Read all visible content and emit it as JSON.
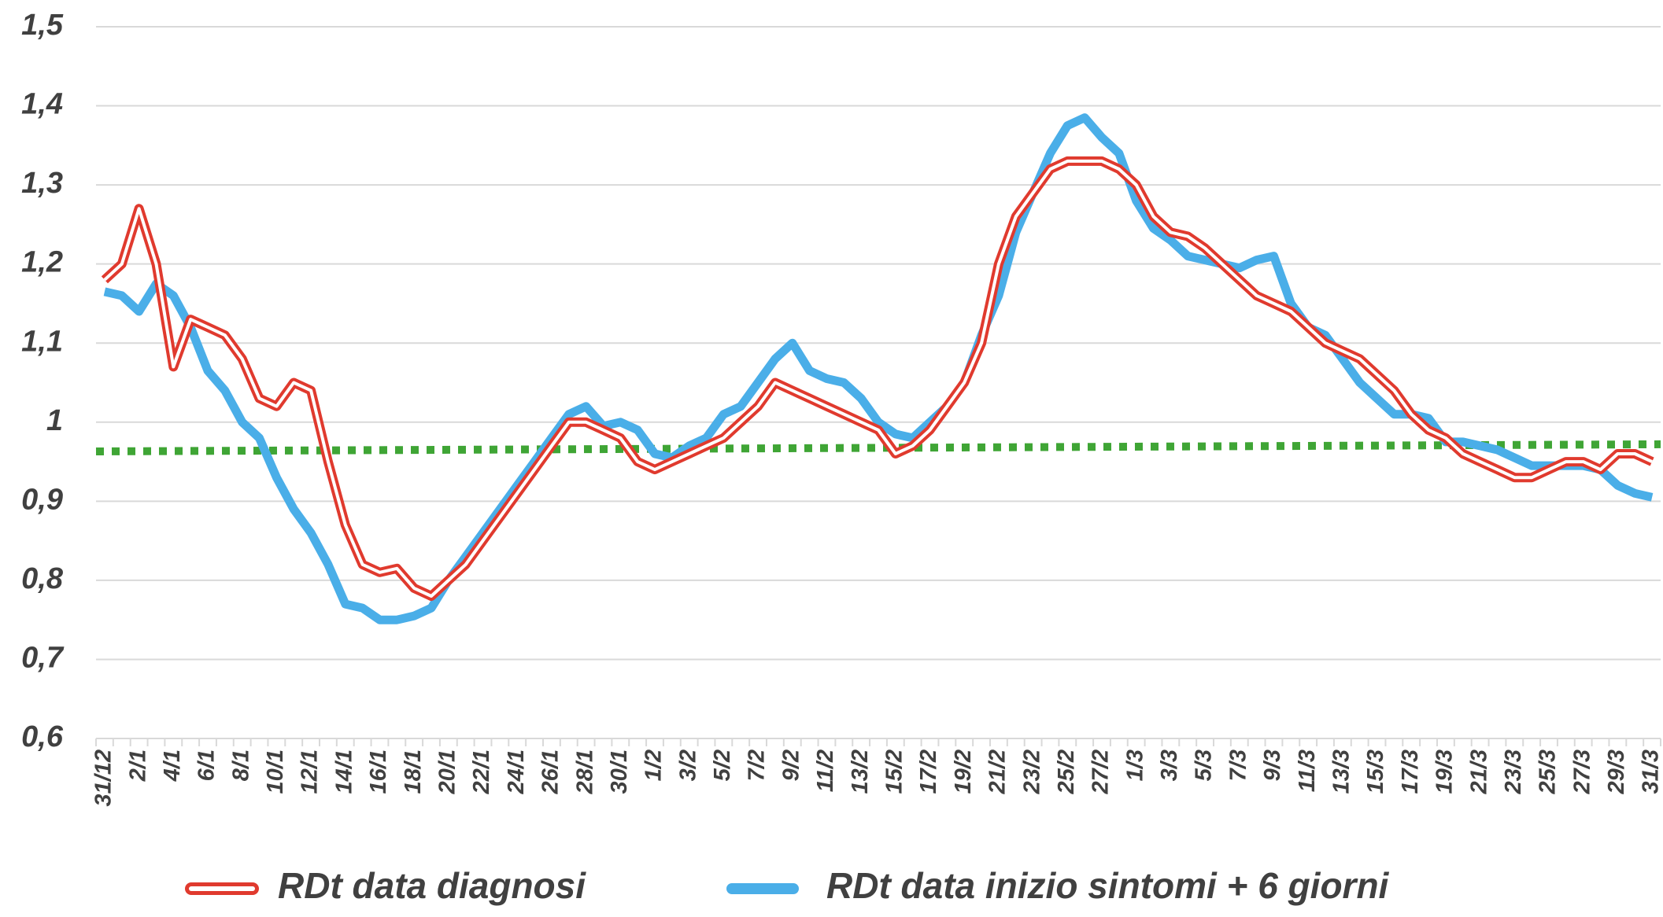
{
  "chart_data": {
    "type": "line",
    "categories": [
      "31/12",
      null,
      "2/1",
      null,
      "4/1",
      null,
      "6/1",
      null,
      "8/1",
      null,
      "10/1",
      null,
      "12/1",
      null,
      "14/1",
      null,
      "16/1",
      null,
      "18/1",
      null,
      "20/1",
      null,
      "22/1",
      null,
      "24/1",
      null,
      "26/1",
      null,
      "28/1",
      null,
      "30/1",
      null,
      "1/2",
      null,
      "3/2",
      null,
      "5/2",
      null,
      "7/2",
      null,
      "9/2",
      null,
      "11/2",
      null,
      "13/2",
      null,
      "15/2",
      null,
      "17/2",
      null,
      "19/2",
      null,
      "21/2",
      null,
      "23/2",
      null,
      "25/2",
      null,
      "27/2",
      null,
      "1/3",
      null,
      "3/3",
      null,
      "5/3",
      null,
      "7/3",
      null,
      "9/3",
      null,
      "11/3",
      null,
      "13/3",
      null,
      "15/3",
      null,
      "17/3",
      null,
      "19/3",
      null,
      "21/3",
      null,
      "23/3",
      null,
      "25/3",
      null,
      "27/3",
      null,
      "29/3",
      null,
      "31/3"
    ],
    "series": [
      {
        "name": "RDt data diagnosi",
        "color": "#e03a2e",
        "style": "outlined",
        "values": [
          1.18,
          1.2,
          1.27,
          1.2,
          1.07,
          1.13,
          1.12,
          1.11,
          1.08,
          1.03,
          1.02,
          1.05,
          1.04,
          0.95,
          0.87,
          0.82,
          0.81,
          0.815,
          0.79,
          0.78,
          0.8,
          0.82,
          0.85,
          0.88,
          0.91,
          0.94,
          0.97,
          1.0,
          1.0,
          0.99,
          0.98,
          0.95,
          0.94,
          0.95,
          0.96,
          0.97,
          0.98,
          1.0,
          1.02,
          1.05,
          1.04,
          1.03,
          1.02,
          1.01,
          1.0,
          0.99,
          0.96,
          0.97,
          0.99,
          1.02,
          1.05,
          1.1,
          1.2,
          1.26,
          1.29,
          1.32,
          1.33,
          1.33,
          1.33,
          1.32,
          1.3,
          1.26,
          1.24,
          1.235,
          1.22,
          1.2,
          1.18,
          1.16,
          1.15,
          1.14,
          1.12,
          1.1,
          1.09,
          1.08,
          1.06,
          1.04,
          1.01,
          0.99,
          0.98,
          0.96,
          0.95,
          0.94,
          0.93,
          0.93,
          0.94,
          0.95,
          0.95,
          0.94,
          0.96,
          0.96,
          0.95
        ]
      },
      {
        "name": "RDt data inizio sintomi + 6 giorni",
        "color": "#4aaee8",
        "style": "solid",
        "values": [
          1.165,
          1.16,
          1.14,
          1.175,
          1.16,
          1.12,
          1.065,
          1.04,
          1.0,
          0.98,
          0.93,
          0.89,
          0.86,
          0.82,
          0.77,
          0.765,
          0.75,
          0.75,
          0.755,
          0.765,
          0.8,
          0.83,
          0.86,
          0.89,
          0.92,
          0.95,
          0.98,
          1.01,
          1.02,
          0.995,
          1.0,
          0.99,
          0.96,
          0.955,
          0.97,
          0.98,
          1.01,
          1.02,
          1.05,
          1.08,
          1.1,
          1.065,
          1.055,
          1.05,
          1.03,
          1.0,
          0.985,
          0.98,
          1.0,
          1.02,
          1.05,
          1.11,
          1.16,
          1.24,
          1.29,
          1.34,
          1.375,
          1.385,
          1.36,
          1.34,
          1.28,
          1.245,
          1.23,
          1.21,
          1.205,
          1.2,
          1.195,
          1.205,
          1.21,
          1.15,
          1.12,
          1.11,
          1.08,
          1.05,
          1.03,
          1.01,
          1.01,
          1.005,
          0.975,
          0.975,
          0.97,
          0.965,
          0.955,
          0.945,
          0.945,
          0.945,
          0.945,
          0.94,
          0.92,
          0.91,
          0.905
        ]
      }
    ],
    "reference_line": {
      "color": "#3fa535",
      "values": [
        0.963,
        0.972
      ]
    },
    "ylim": [
      0.6,
      1.5
    ],
    "yticks": [
      {
        "value": 0.6,
        "label": "0,6"
      },
      {
        "value": 0.7,
        "label": "0,7"
      },
      {
        "value": 0.8,
        "label": "0,8"
      },
      {
        "value": 0.9,
        "label": "0,9"
      },
      1,
      {
        "value": 1.1,
        "label": "1,1"
      },
      {
        "value": 1.2,
        "label": "1,2"
      },
      {
        "value": 1.3,
        "label": "1,3"
      },
      {
        "value": 1.4,
        "label": "1,4"
      },
      {
        "value": 1.5,
        "label": "1,5"
      }
    ],
    "grid": true,
    "legend": "bottom"
  }
}
